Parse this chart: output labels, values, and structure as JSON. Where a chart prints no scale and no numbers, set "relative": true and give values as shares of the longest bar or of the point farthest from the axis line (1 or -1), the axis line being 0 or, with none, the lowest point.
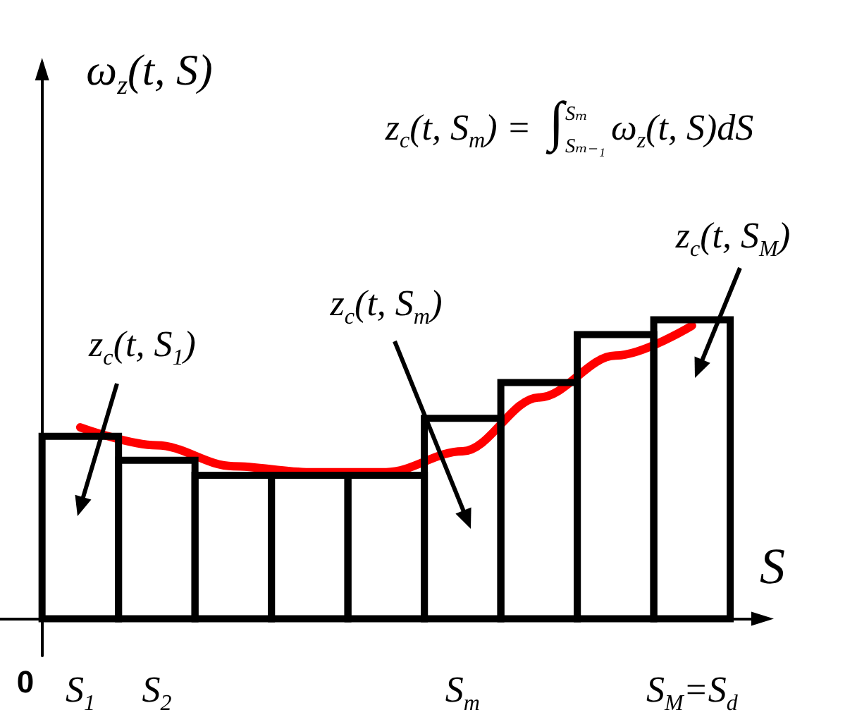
{
  "chart_data": {
    "type": "bar",
    "xlabel": "S",
    "annotations": [
      "ω$_{z}$(t, S)",
      "z$_{c}$(t, S$_{m}$) = ∫$^{Sₘ}$$_{Sₘ₋₁}$ω$_{z}$(t, S)dS",
      "z$_{c}$(t, S$_{M}$)",
      "z$_{c}$(t, S$_{m}$)",
      "z$_{c}$(t, S$_{1}$)",
      "0"
    ],
    "relative": true,
    "categories": [
      "S$_{1}$",
      "S$_{2}$",
      null,
      null,
      null,
      "S$_{m}$",
      null,
      null,
      "S$_{M}$=S$_{d}$"
    ],
    "marker": "none",
    "series": [
      {
        "color": "#000000",
        "values": [
          0.61,
          0.53,
          0.48,
          0.48,
          0.48,
          0.67,
          0.79,
          0.95,
          1
        ]
      },
      {
        "type": "line",
        "color": "#ff0000",
        "values": [
          0.64,
          0.58,
          0.51,
          0.49,
          0.49,
          0.56,
          0.74,
          0.88,
          0.98
        ]
      }
    ]
  }
}
